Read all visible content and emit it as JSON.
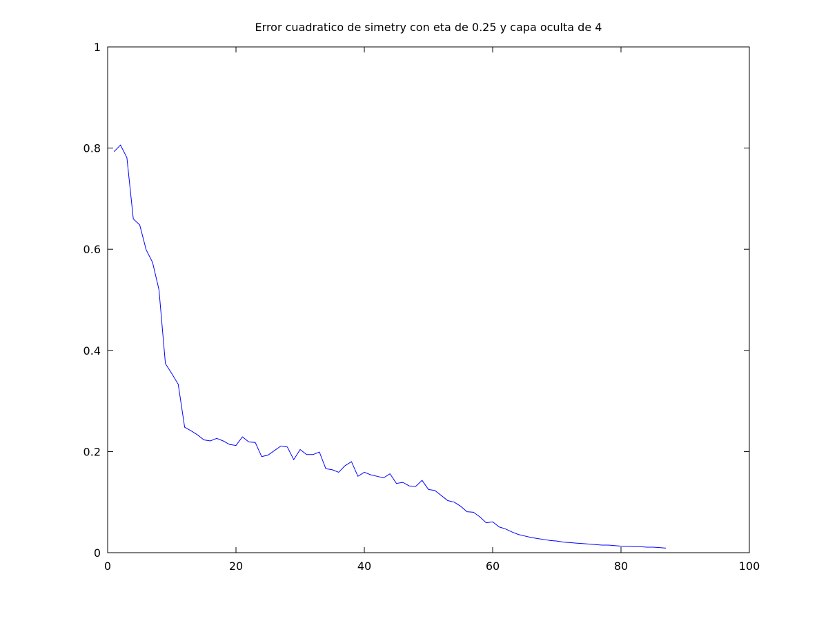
{
  "chart_data": {
    "type": "line",
    "title": "Error cuadratico de simetry con eta de 0.25 y capa oculta de 4",
    "xlabel": "",
    "ylabel": "",
    "xlim": [
      0,
      100
    ],
    "ylim": [
      0,
      1
    ],
    "xticks": [
      0,
      20,
      40,
      60,
      80,
      100
    ],
    "yticks": [
      0,
      0.2,
      0.4,
      0.6,
      0.8,
      1
    ],
    "xtick_labels": [
      "0",
      "20",
      "40",
      "60",
      "80",
      "100"
    ],
    "ytick_labels": [
      "0",
      "0.2",
      "0.4",
      "0.6",
      "0.8",
      "1"
    ],
    "grid": false,
    "series": [
      {
        "color": "#0000ff",
        "x": [
          1,
          2,
          3,
          4,
          5,
          6,
          7,
          8,
          9,
          10,
          11,
          12,
          13,
          14,
          15,
          16,
          17,
          18,
          19,
          20,
          21,
          22,
          23,
          24,
          25,
          26,
          27,
          28,
          29,
          30,
          31,
          32,
          33,
          34,
          35,
          36,
          37,
          38,
          39,
          40,
          41,
          42,
          43,
          44,
          45,
          46,
          47,
          48,
          49,
          50,
          51,
          52,
          53,
          54,
          55,
          56,
          57,
          58,
          59,
          60,
          61,
          62,
          63,
          64,
          65,
          66,
          67,
          68,
          69,
          70,
          71,
          72,
          73,
          74,
          75,
          76,
          77,
          78,
          79,
          80,
          81,
          82,
          83,
          84,
          85,
          86,
          87
        ],
        "y": [
          0.793,
          0.806,
          0.781,
          0.66,
          0.648,
          0.599,
          0.574,
          0.52,
          0.374,
          0.354,
          0.333,
          0.248,
          0.241,
          0.233,
          0.223,
          0.221,
          0.226,
          0.221,
          0.214,
          0.212,
          0.229,
          0.219,
          0.218,
          0.19,
          0.193,
          0.202,
          0.211,
          0.209,
          0.184,
          0.204,
          0.194,
          0.194,
          0.199,
          0.166,
          0.164,
          0.159,
          0.172,
          0.18,
          0.151,
          0.159,
          0.154,
          0.151,
          0.148,
          0.156,
          0.137,
          0.139,
          0.132,
          0.131,
          0.143,
          0.125,
          0.123,
          0.113,
          0.103,
          0.1,
          0.092,
          0.081,
          0.08,
          0.071,
          0.059,
          0.061,
          0.051,
          0.047,
          0.041,
          0.036,
          0.033,
          0.03,
          0.028,
          0.026,
          0.024,
          0.023,
          0.021,
          0.02,
          0.019,
          0.018,
          0.017,
          0.016,
          0.015,
          0.015,
          0.014,
          0.013,
          0.013,
          0.012,
          0.012,
          0.011,
          0.011,
          0.01,
          0.009
        ]
      }
    ]
  }
}
